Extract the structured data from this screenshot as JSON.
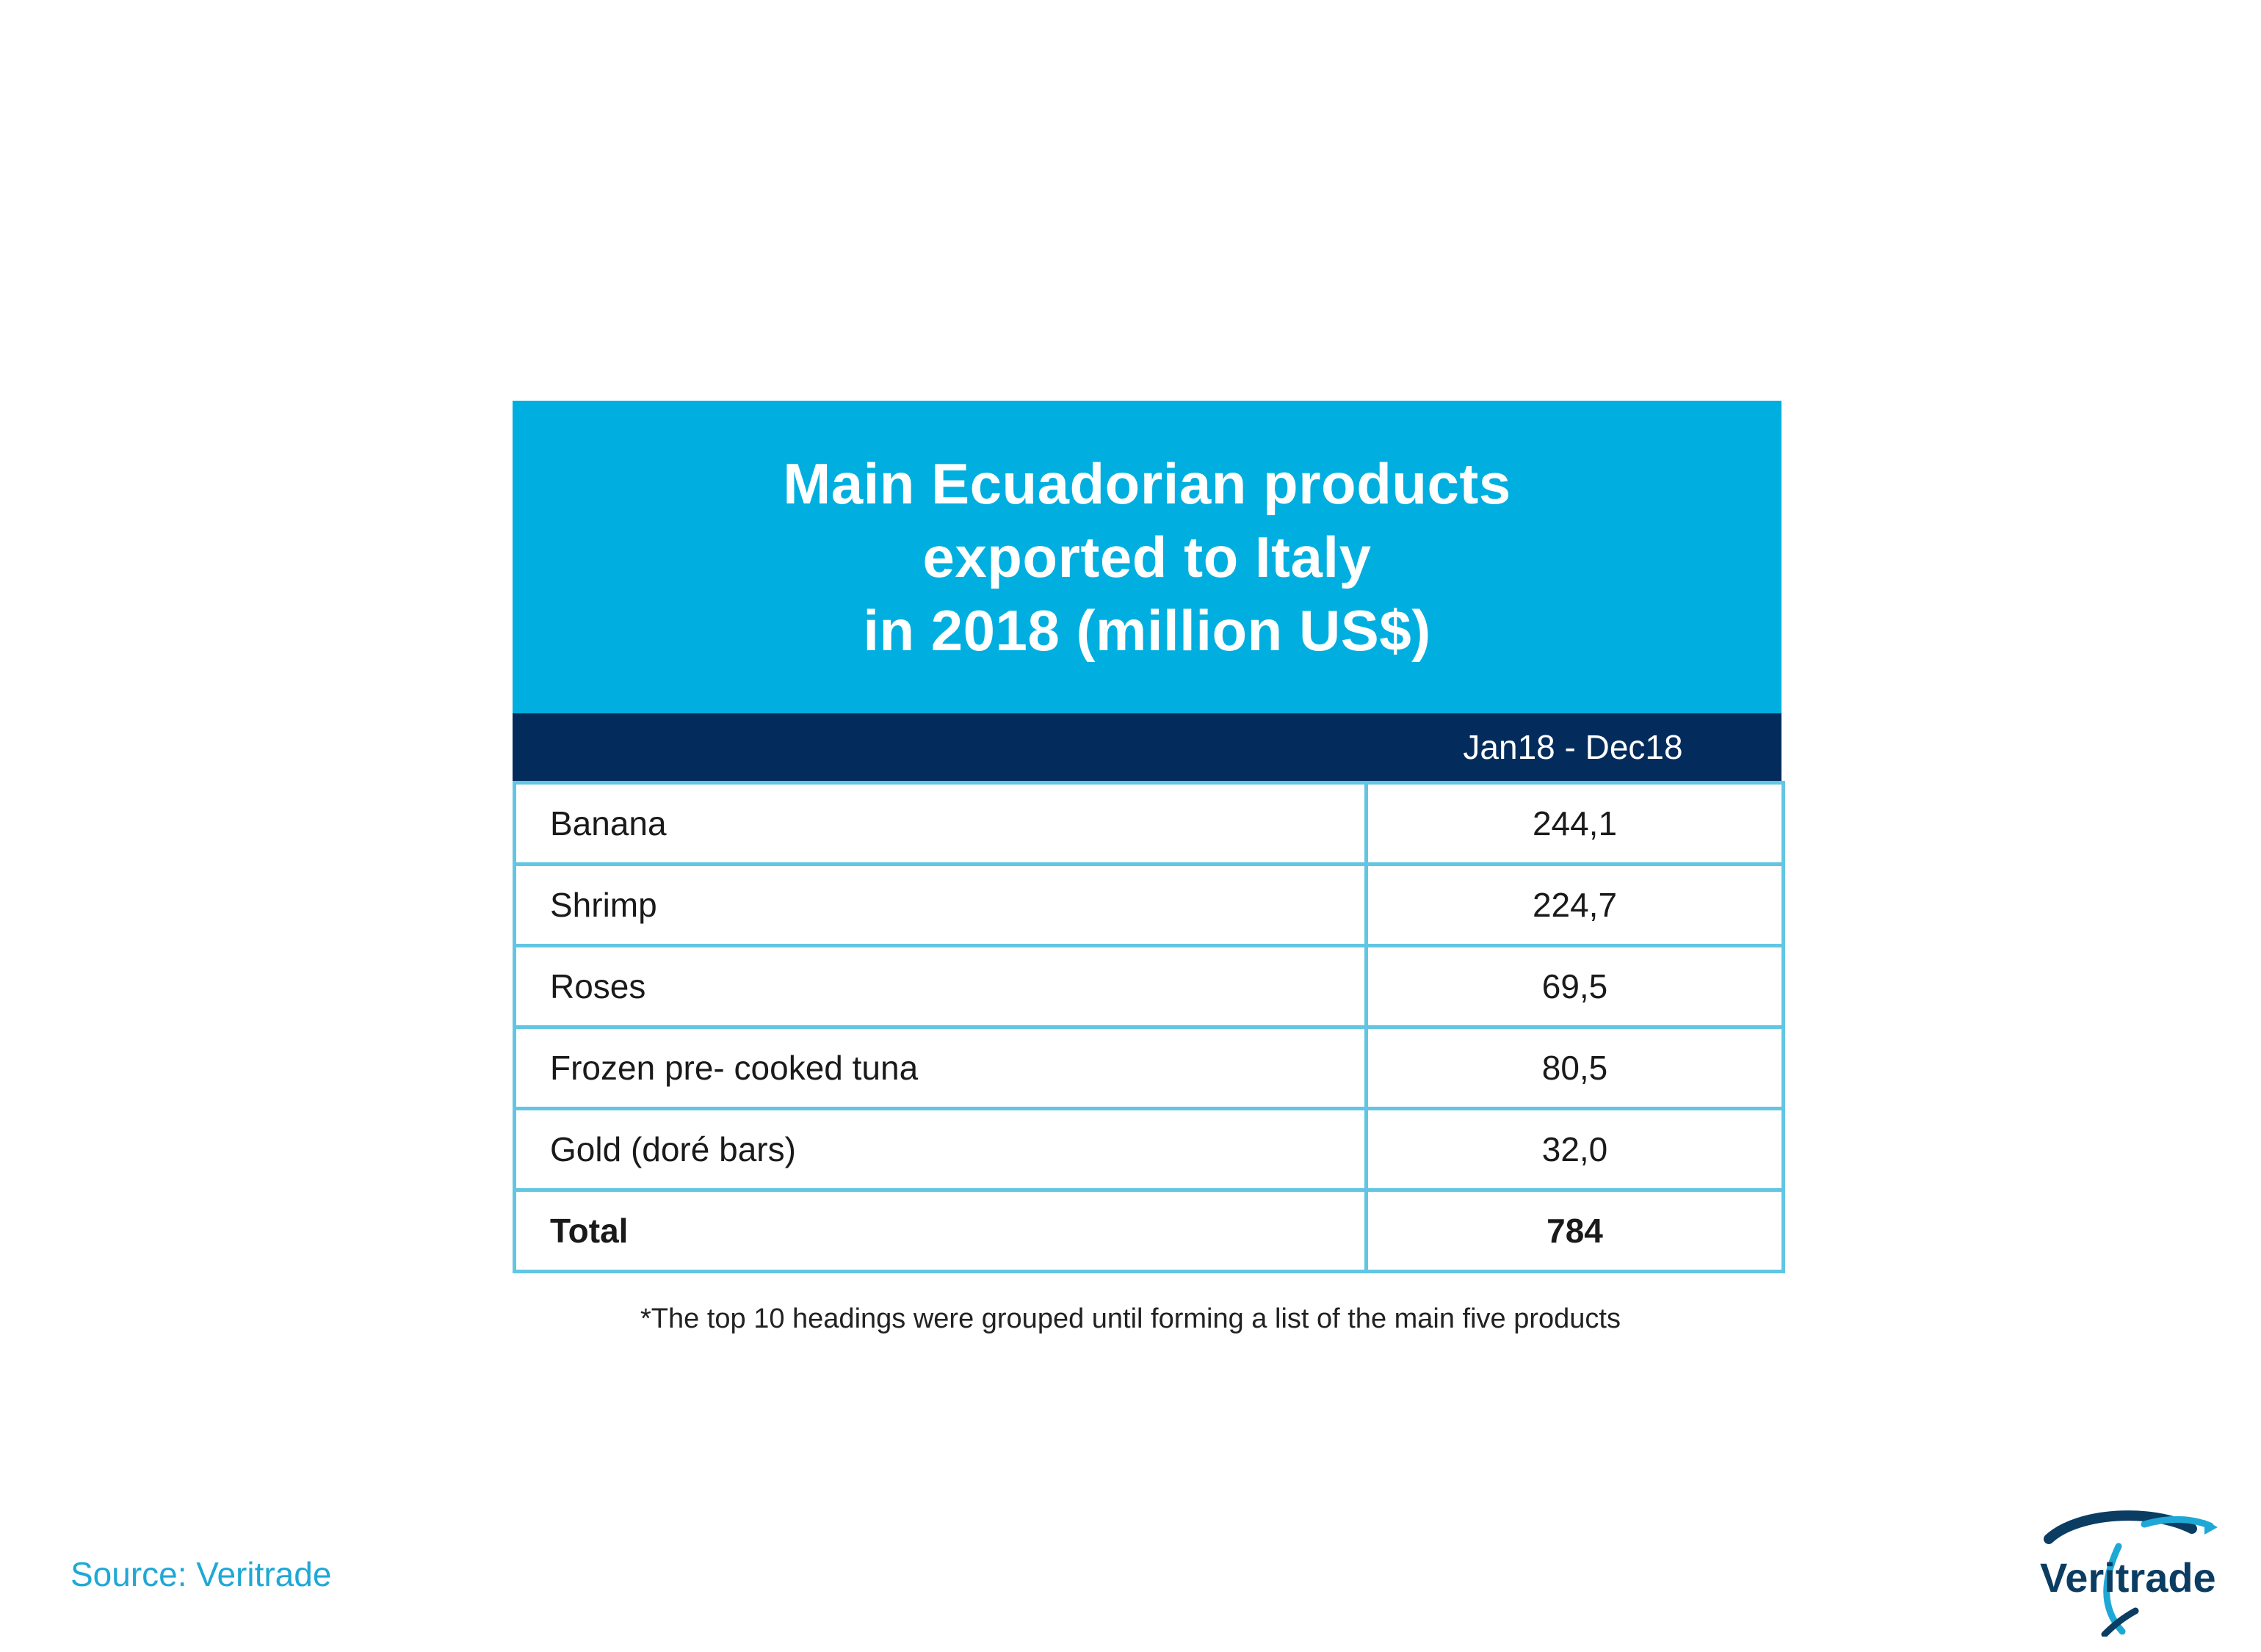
{
  "chart_data": {
    "type": "table",
    "title": "Main Ecuadorian products\nexported to Italy\nin 2018 (million US$)",
    "column_header": "Jan18 - Dec18",
    "rows": [
      {
        "label": "Banana",
        "value": "244,1"
      },
      {
        "label": "Shrimp",
        "value": "224,7"
      },
      {
        "label": "Roses",
        "value": "69,5"
      },
      {
        "label": "Frozen pre- cooked tuna",
        "value": "80,5"
      },
      {
        "label": "Gold (doré bars)",
        "value": "32,0"
      }
    ],
    "total": {
      "label": "Total",
      "value": "784"
    },
    "footnote": "*The top 10 headings were grouped until forming a list of the main five products"
  },
  "source": "Source: Veritrade",
  "logo": {
    "text": "Veritrade",
    "icon": "veritrade-swoosh-logo"
  },
  "colors": {
    "title_band": "#00afdf",
    "header_band": "#032c5c",
    "grid": "#62c6e3",
    "source_text": "#1fa8d6"
  }
}
